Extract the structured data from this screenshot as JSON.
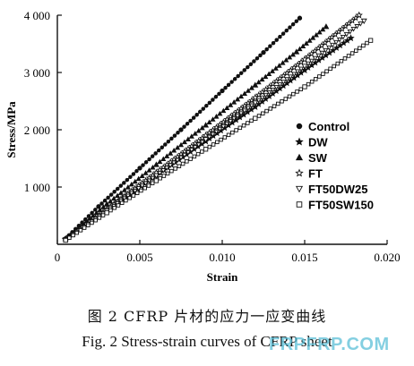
{
  "chart_data": {
    "type": "line",
    "title": "",
    "xlabel": "Strain",
    "ylabel": "Stress/MPa",
    "xlim": [
      0,
      0.02
    ],
    "ylim": [
      0,
      4000
    ],
    "x_ticks": [
      0,
      0.005,
      0.01,
      0.015,
      0.02
    ],
    "x_tick_labels": [
      "0",
      "0.005",
      "0.010",
      "0.015",
      "0.020"
    ],
    "y_ticks": [
      1000,
      2000,
      3000,
      4000
    ],
    "y_tick_labels": [
      "1 000",
      "2 000",
      "3 000",
      "4 000"
    ],
    "grid": false,
    "legend_position": "right",
    "series": [
      {
        "name": "Control",
        "marker": "filled-circle",
        "x": [
          0.0005,
          0.0025,
          0.005,
          0.0075,
          0.01,
          0.0125,
          0.0147
        ],
        "y": [
          100,
          660,
          1330,
          2000,
          2680,
          3350,
          3950
        ]
      },
      {
        "name": "DW",
        "marker": "filled-star",
        "x": [
          0.0005,
          0.003,
          0.006,
          0.009,
          0.012,
          0.015,
          0.0178
        ],
        "y": [
          90,
          600,
          1200,
          1800,
          2400,
          3040,
          3600
        ]
      },
      {
        "name": "SW",
        "marker": "filled-triangle",
        "x": [
          0.0005,
          0.003,
          0.006,
          0.009,
          0.012,
          0.0145,
          0.0163
        ],
        "y": [
          100,
          700,
          1390,
          2080,
          2780,
          3360,
          3800
        ]
      },
      {
        "name": "FT",
        "marker": "open-star",
        "x": [
          0.0005,
          0.003,
          0.006,
          0.009,
          0.012,
          0.015,
          0.0183
        ],
        "y": [
          80,
          610,
          1250,
          1900,
          2560,
          3230,
          4000
        ]
      },
      {
        "name": "FT50DW25",
        "marker": "open-triangle-down",
        "x": [
          0.0005,
          0.003,
          0.006,
          0.009,
          0.012,
          0.015,
          0.0186
        ],
        "y": [
          80,
          580,
          1200,
          1830,
          2470,
          3110,
          3900
        ]
      },
      {
        "name": "FT50SW150",
        "marker": "open-square",
        "x": [
          0.0005,
          0.003,
          0.006,
          0.009,
          0.012,
          0.015,
          0.019
        ],
        "y": [
          70,
          550,
          1110,
          1660,
          2200,
          2750,
          3560
        ]
      }
    ]
  },
  "caption": {
    "chinese": "图 2   CFRP 片材的应力一应变曲线",
    "english": "Fig. 2   Stress-strain curves of CFRP sheet"
  },
  "watermark": "FRPFRP.COM"
}
